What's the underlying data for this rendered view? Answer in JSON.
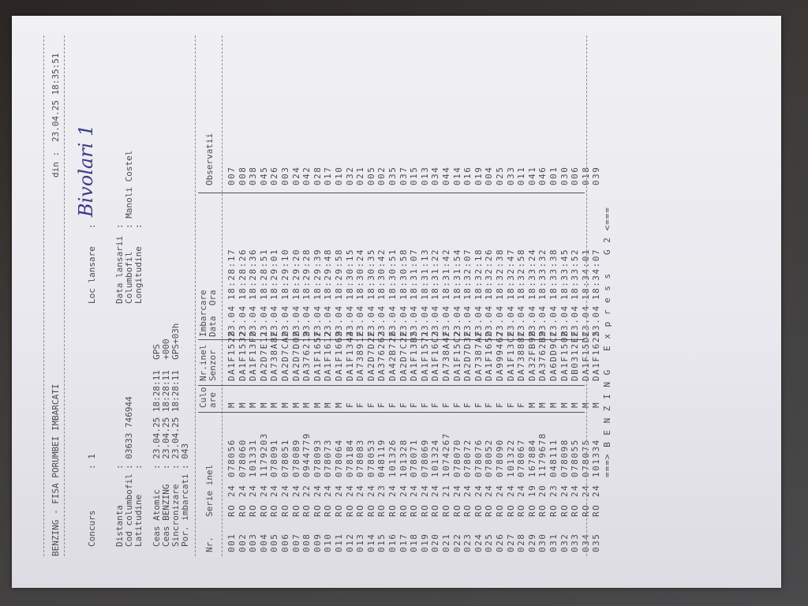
{
  "header": {
    "title": "BENZING - FISA PORUMBEI IMBARCATI",
    "din_label": "din :",
    "din_value": "23.04.25 18:35:51"
  },
  "info": {
    "concurs_label": "Concurs",
    "concurs_value": ": 1",
    "loc_label": "Loc lansare",
    "loc_sep": ":",
    "loc_value": "Bivolari 1",
    "distanta_label": "Distanta",
    "distanta_value": ":",
    "cod_label": "Cod columbofil",
    "cod_value": ": 03633 746944",
    "latitudine_label": "Latitudine",
    "latitudine_value": ":",
    "data_lansarii_label": "Data lansarii",
    "data_lansarii_value": ":",
    "columbofil_label": "Columbofil",
    "columbofil_value": ": Manoli Costel",
    "longitudine_label": "Longitudine",
    "longitudine_value": ":",
    "ceas_atomic_label": "Ceas Atomic",
    "ceas_atomic_value": ": 23.04.25 18:28:11  GPS",
    "ceas_benzing_label": "Ceas BENZING",
    "ceas_benzing_value": ": 23.04.25 18:28:11  +000",
    "sincronizare_label": "Sincronizare",
    "sincronizare_value": ": 23.04.25 18:28:11  GPS+03h",
    "por_label": "Por. imbarcati",
    "por_value": ": 043"
  },
  "table": {
    "headers": {
      "nr": "Nr.",
      "serie": "Serie inel",
      "culoare1": "Culo",
      "culoare2": "are",
      "nrinel1": "Nr.inel",
      "nrinel2": "Senzor",
      "imb1": "Imbarcare",
      "imb2": "Data  Ora",
      "obs": "Observatii"
    },
    "rows": [
      [
        "001",
        "RO",
        "24",
        "078056",
        "M",
        "DA1F1528",
        "23.04",
        "18:28:17",
        "007"
      ],
      [
        "002",
        "RO",
        "24",
        "078060",
        "M",
        "DA1F1532",
        "23.04",
        "18:28:26",
        "008"
      ],
      [
        "003",
        "RO",
        "24",
        "101331",
        "M",
        "DA1F13F0",
        "23.04",
        "18:28:36",
        "038"
      ],
      [
        "004",
        "RO",
        "24",
        "1179203",
        "M",
        "DA2D7E11",
        "23.04",
        "18:28:51",
        "045"
      ],
      [
        "005",
        "RO",
        "24",
        "078091",
        "M",
        "DA738A8E",
        "23.04",
        "18:29:01",
        "026"
      ],
      [
        "006",
        "RO",
        "24",
        "078051",
        "M",
        "DA2D7CA0",
        "23.04",
        "18:29:10",
        "003"
      ],
      [
        "007",
        "RO",
        "24",
        "078089",
        "M",
        "DA2D7D0B",
        "23.04",
        "18:29:20",
        "024"
      ],
      [
        "008",
        "RO",
        "22",
        "0944779",
        "M",
        "DA376219",
        "23.04",
        "18:29:28",
        "042"
      ],
      [
        "009",
        "RO",
        "24",
        "078093",
        "M",
        "DA1F165F",
        "23.04",
        "18:29:39",
        "028"
      ],
      [
        "010",
        "RO",
        "24",
        "078073",
        "M",
        "DA1F1612",
        "23.04",
        "18:29:48",
        "017"
      ],
      [
        "011",
        "RO",
        "24",
        "078064",
        "M",
        "DA1F1669",
        "23.04",
        "18:29:58",
        "010"
      ],
      [
        "012",
        "RO",
        "24",
        "078184",
        "F",
        "DA1F1344",
        "23.04",
        "18:30:15",
        "032"
      ],
      [
        "013",
        "RO",
        "24",
        "078083",
        "F",
        "DA73891E",
        "23.04",
        "18:30:24",
        "021"
      ],
      [
        "014",
        "RO",
        "24",
        "078053",
        "F",
        "DA2D7D2E",
        "23.04",
        "18:30:35",
        "005"
      ],
      [
        "015",
        "RO",
        "23",
        "048119",
        "F",
        "DA376263",
        "23.04",
        "18:30:42",
        "002"
      ],
      [
        "016",
        "RO",
        "24",
        "101326",
        "F",
        "DA42B726",
        "23.04",
        "18:30:51",
        "035"
      ],
      [
        "017",
        "RO",
        "24",
        "101328",
        "F",
        "DA2D7C2E",
        "23.04",
        "18:30:58",
        "037"
      ],
      [
        "018",
        "RO",
        "24",
        "078071",
        "F",
        "DA1F13B5",
        "23.04",
        "18:31:07",
        "015"
      ],
      [
        "019",
        "RO",
        "24",
        "078069",
        "F",
        "DA1F1571",
        "23.04",
        "18:31:13",
        "013"
      ],
      [
        "020",
        "RO",
        "24",
        "101324",
        "F",
        "DA1F16C3",
        "23.04",
        "18:31:22",
        "034"
      ],
      [
        "021",
        "RO",
        "21",
        "1074267",
        "F",
        "DA738A4F",
        "23.04",
        "18:31:42",
        "044"
      ],
      [
        "022",
        "RO",
        "24",
        "078070",
        "F",
        "DA1F15C2",
        "23.04",
        "18:31:54",
        "014"
      ],
      [
        "023",
        "RO",
        "24",
        "078072",
        "F",
        "DA2D7D3E",
        "23.04",
        "18:32:07",
        "016"
      ],
      [
        "024",
        "RO",
        "24",
        "078076",
        "F",
        "DA7387AF",
        "23.04",
        "18:32:18",
        "019"
      ],
      [
        "025",
        "RO",
        "24",
        "078052",
        "F",
        "DA1F165D",
        "23.04",
        "18:32:26",
        "004"
      ],
      [
        "026",
        "RO",
        "24",
        "078090",
        "F",
        "DA999467",
        "23.04",
        "18:32:38",
        "025"
      ],
      [
        "027",
        "RO",
        "24",
        "101322",
        "F",
        "DA1F13CE",
        "23.04",
        "18:32:47",
        "033"
      ],
      [
        "028",
        "RO",
        "24",
        "078067",
        "F",
        "DA73888C",
        "23.04",
        "18:32:58",
        "011"
      ],
      [
        "029",
        "RO",
        "19",
        "167884",
        "M",
        "DA32FB9B",
        "23.04",
        "18:33:24",
        "041"
      ],
      [
        "030",
        "RO",
        "20",
        "1179678",
        "M",
        "DA3762B9",
        "23.04",
        "18:33:32",
        "046"
      ],
      [
        "031",
        "RO",
        "23",
        "048111",
        "M",
        "DA6DD9CC",
        "23.04",
        "18:33:38",
        "001"
      ],
      [
        "032",
        "RO",
        "24",
        "078098",
        "M",
        "DA1F150B",
        "23.04",
        "18:33:45",
        "030"
      ],
      [
        "033",
        "RO",
        "24",
        "078055",
        "M",
        "DB0312EE",
        "23.04",
        "18:33:52",
        "006"
      ],
      [
        "034",
        "RO",
        "24",
        "078075",
        "M",
        "DA1F15DC",
        "23.04",
        "18:34:01",
        "018"
      ],
      [
        "035",
        "RO",
        "24",
        "101334",
        "M",
        "DA1F1625",
        "23.04",
        "18:34:07",
        "039"
      ]
    ]
  },
  "footer": "===> B E N Z I N G   E x p r e s s   G 2 <==="
}
